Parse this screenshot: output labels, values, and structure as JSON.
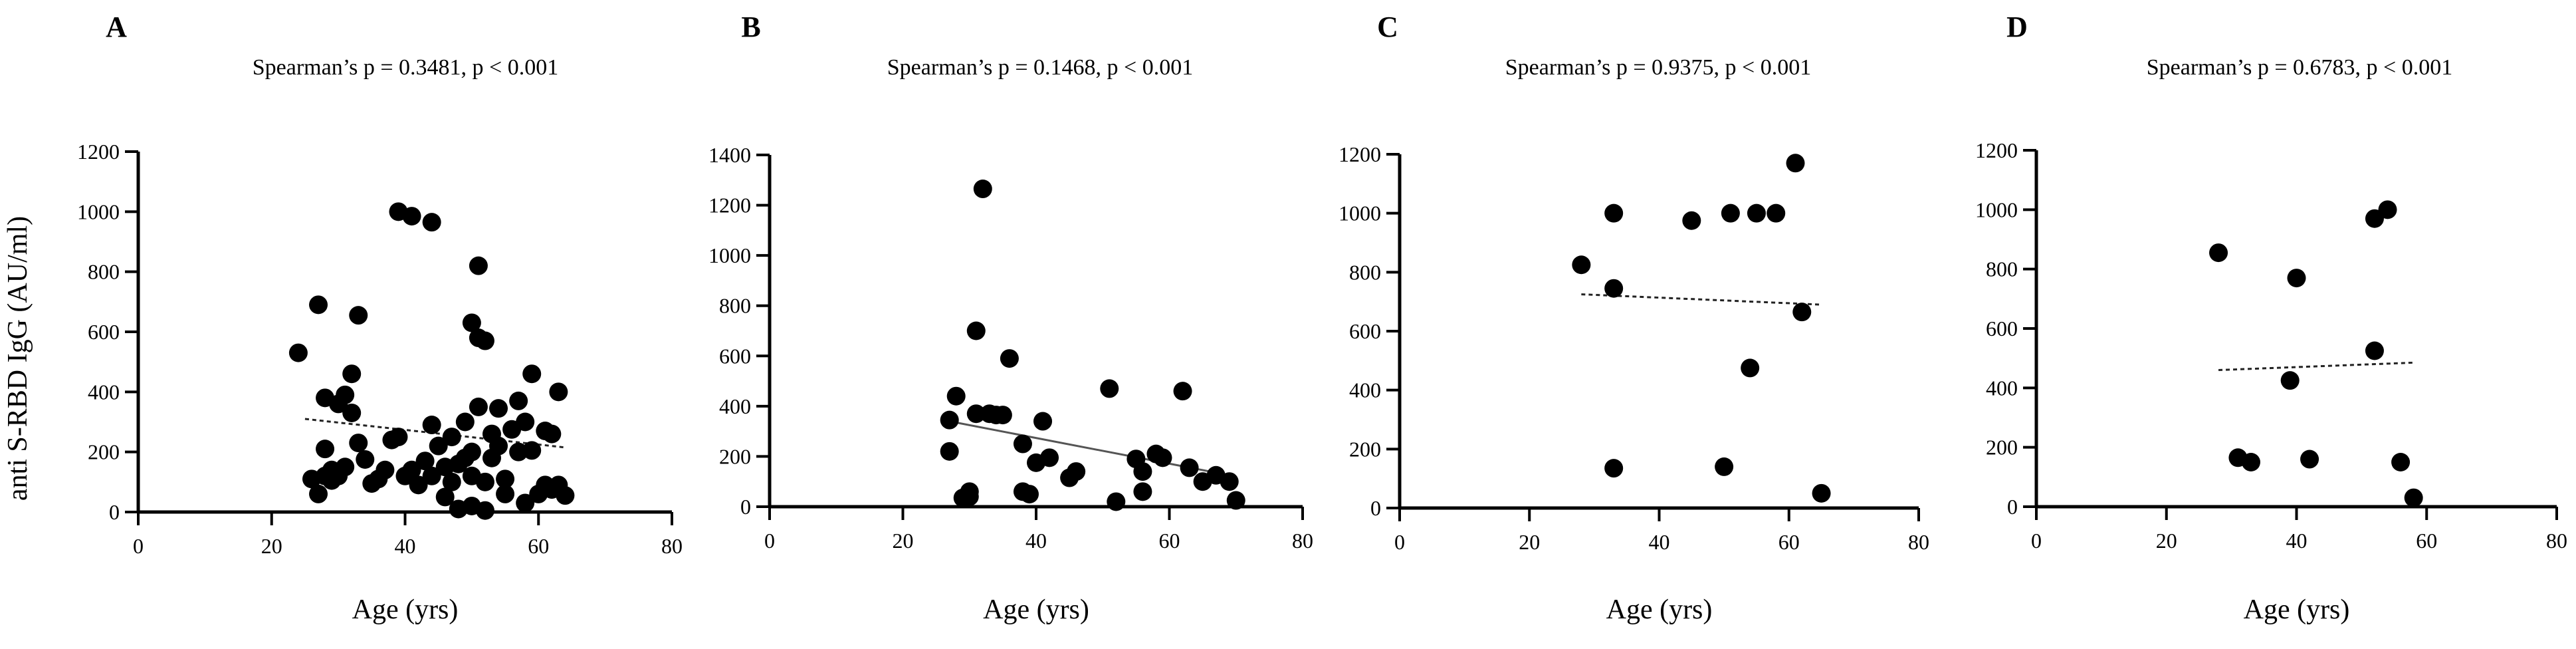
{
  "chart_data": [
    {
      "panel": "A",
      "type": "scatter",
      "title": "Spearman’s p = 0.3481, p < 0.001",
      "xlabel": "Age (yrs)",
      "ylabel": "anti S-RBD IgG (AU/ml)",
      "xlim": [
        0,
        80
      ],
      "ylim": [
        0,
        1200
      ],
      "xticks": [
        0,
        20,
        40,
        60,
        80
      ],
      "yticks": [
        0,
        200,
        400,
        600,
        800,
        1000,
        1200
      ],
      "trend": {
        "style": "dotted",
        "x": [
          25,
          64
        ],
        "y": [
          310,
          215
        ]
      },
      "points": [
        [
          24,
          530
        ],
        [
          26,
          110
        ],
        [
          27,
          690
        ],
        [
          27,
          60
        ],
        [
          28,
          120
        ],
        [
          28,
          210
        ],
        [
          28,
          380
        ],
        [
          29,
          140
        ],
        [
          29,
          105
        ],
        [
          30,
          360
        ],
        [
          30,
          120
        ],
        [
          31,
          390
        ],
        [
          31,
          150
        ],
        [
          32,
          330
        ],
        [
          32,
          460
        ],
        [
          33,
          655
        ],
        [
          33,
          230
        ],
        [
          34,
          175
        ],
        [
          35,
          95
        ],
        [
          36,
          110
        ],
        [
          37,
          140
        ],
        [
          38,
          240
        ],
        [
          39,
          1000
        ],
        [
          39,
          250
        ],
        [
          40,
          120
        ],
        [
          41,
          985
        ],
        [
          41,
          140
        ],
        [
          42,
          90
        ],
        [
          43,
          170
        ],
        [
          44,
          965
        ],
        [
          44,
          120
        ],
        [
          44,
          290
        ],
        [
          45,
          220
        ],
        [
          46,
          50
        ],
        [
          46,
          150
        ],
        [
          47,
          250
        ],
        [
          47,
          100
        ],
        [
          48,
          10
        ],
        [
          48,
          160
        ],
        [
          49,
          180
        ],
        [
          49,
          300
        ],
        [
          50,
          200
        ],
        [
          50,
          120
        ],
        [
          50,
          630
        ],
        [
          50,
          20
        ],
        [
          51,
          580
        ],
        [
          51,
          820
        ],
        [
          51,
          350
        ],
        [
          52,
          570
        ],
        [
          52,
          5
        ],
        [
          52,
          100
        ],
        [
          53,
          260
        ],
        [
          53,
          180
        ],
        [
          54,
          345
        ],
        [
          54,
          220
        ],
        [
          55,
          110
        ],
        [
          55,
          60
        ],
        [
          56,
          275
        ],
        [
          57,
          200
        ],
        [
          57,
          370
        ],
        [
          58,
          300
        ],
        [
          58,
          30
        ],
        [
          59,
          205
        ],
        [
          59,
          460
        ],
        [
          60,
          60
        ],
        [
          61,
          90
        ],
        [
          61,
          270
        ],
        [
          62,
          75
        ],
        [
          62,
          260
        ],
        [
          63,
          400
        ],
        [
          63,
          90
        ],
        [
          64,
          55
        ]
      ]
    },
    {
      "panel": "B",
      "type": "scatter",
      "title": "Spearman’s p = 0.1468,  p < 0.001",
      "xlabel": "Age (yrs)",
      "ylabel": "",
      "xlim": [
        0,
        80
      ],
      "ylim": [
        0,
        1400
      ],
      "xticks": [
        0,
        20,
        40,
        60,
        80
      ],
      "yticks": [
        0,
        200,
        400,
        600,
        800,
        1000,
        1200,
        1400
      ],
      "trend": {
        "style": "solid",
        "x": [
          27,
          70
        ],
        "y": [
          340,
          120
        ]
      },
      "points": [
        [
          27,
          345
        ],
        [
          27,
          220
        ],
        [
          28,
          440
        ],
        [
          29,
          35
        ],
        [
          30,
          60
        ],
        [
          30,
          40
        ],
        [
          31,
          700
        ],
        [
          31,
          370
        ],
        [
          32,
          1265
        ],
        [
          33,
          370
        ],
        [
          34,
          365
        ],
        [
          35,
          365
        ],
        [
          36,
          590
        ],
        [
          38,
          250
        ],
        [
          38,
          60
        ],
        [
          39,
          50
        ],
        [
          40,
          175
        ],
        [
          41,
          340
        ],
        [
          42,
          195
        ],
        [
          45,
          115
        ],
        [
          46,
          140
        ],
        [
          51,
          470
        ],
        [
          52,
          20
        ],
        [
          55,
          190
        ],
        [
          56,
          60
        ],
        [
          56,
          140
        ],
        [
          58,
          210
        ],
        [
          59,
          195
        ],
        [
          62,
          460
        ],
        [
          63,
          155
        ],
        [
          65,
          100
        ],
        [
          67,
          125
        ],
        [
          69,
          100
        ],
        [
          70,
          25
        ]
      ]
    },
    {
      "panel": "C",
      "type": "scatter",
      "title": "Spearman’s p = 0.9375,  p < 0.001",
      "xlabel": "Age (yrs)",
      "ylabel": "",
      "xlim": [
        0,
        80
      ],
      "ylim": [
        0,
        1200
      ],
      "xticks": [
        0,
        20,
        40,
        60,
        80
      ],
      "yticks": [
        0,
        200,
        400,
        600,
        800,
        1000,
        1200
      ],
      "trend": {
        "style": "dotted",
        "x": [
          28,
          65
        ],
        "y": [
          725,
          690
        ]
      },
      "points": [
        [
          28,
          825
        ],
        [
          33,
          1000
        ],
        [
          33,
          745
        ],
        [
          33,
          135
        ],
        [
          45,
          975
        ],
        [
          50,
          140
        ],
        [
          51,
          1000
        ],
        [
          54,
          475
        ],
        [
          55,
          1000
        ],
        [
          58,
          1000
        ],
        [
          61,
          1170
        ],
        [
          62,
          665
        ],
        [
          65,
          50
        ]
      ]
    },
    {
      "panel": "D",
      "type": "scatter",
      "title": "Spearman’s p = 0.6783,  p < 0.001",
      "xlabel": "Age (yrs)",
      "ylabel": "",
      "xlim": [
        0,
        80
      ],
      "ylim": [
        0,
        1200
      ],
      "xticks": [
        0,
        20,
        40,
        60,
        80
      ],
      "yticks": [
        0,
        200,
        400,
        600,
        800,
        1000,
        1200
      ],
      "trend": {
        "style": "dotted",
        "x": [
          28,
          58
        ],
        "y": [
          460,
          485
        ]
      },
      "points": [
        [
          28,
          855
        ],
        [
          31,
          165
        ],
        [
          33,
          150
        ],
        [
          39,
          425
        ],
        [
          40,
          770
        ],
        [
          42,
          160
        ],
        [
          52,
          970
        ],
        [
          52,
          525
        ],
        [
          54,
          1000
        ],
        [
          56,
          150
        ],
        [
          58,
          30
        ]
      ]
    }
  ]
}
